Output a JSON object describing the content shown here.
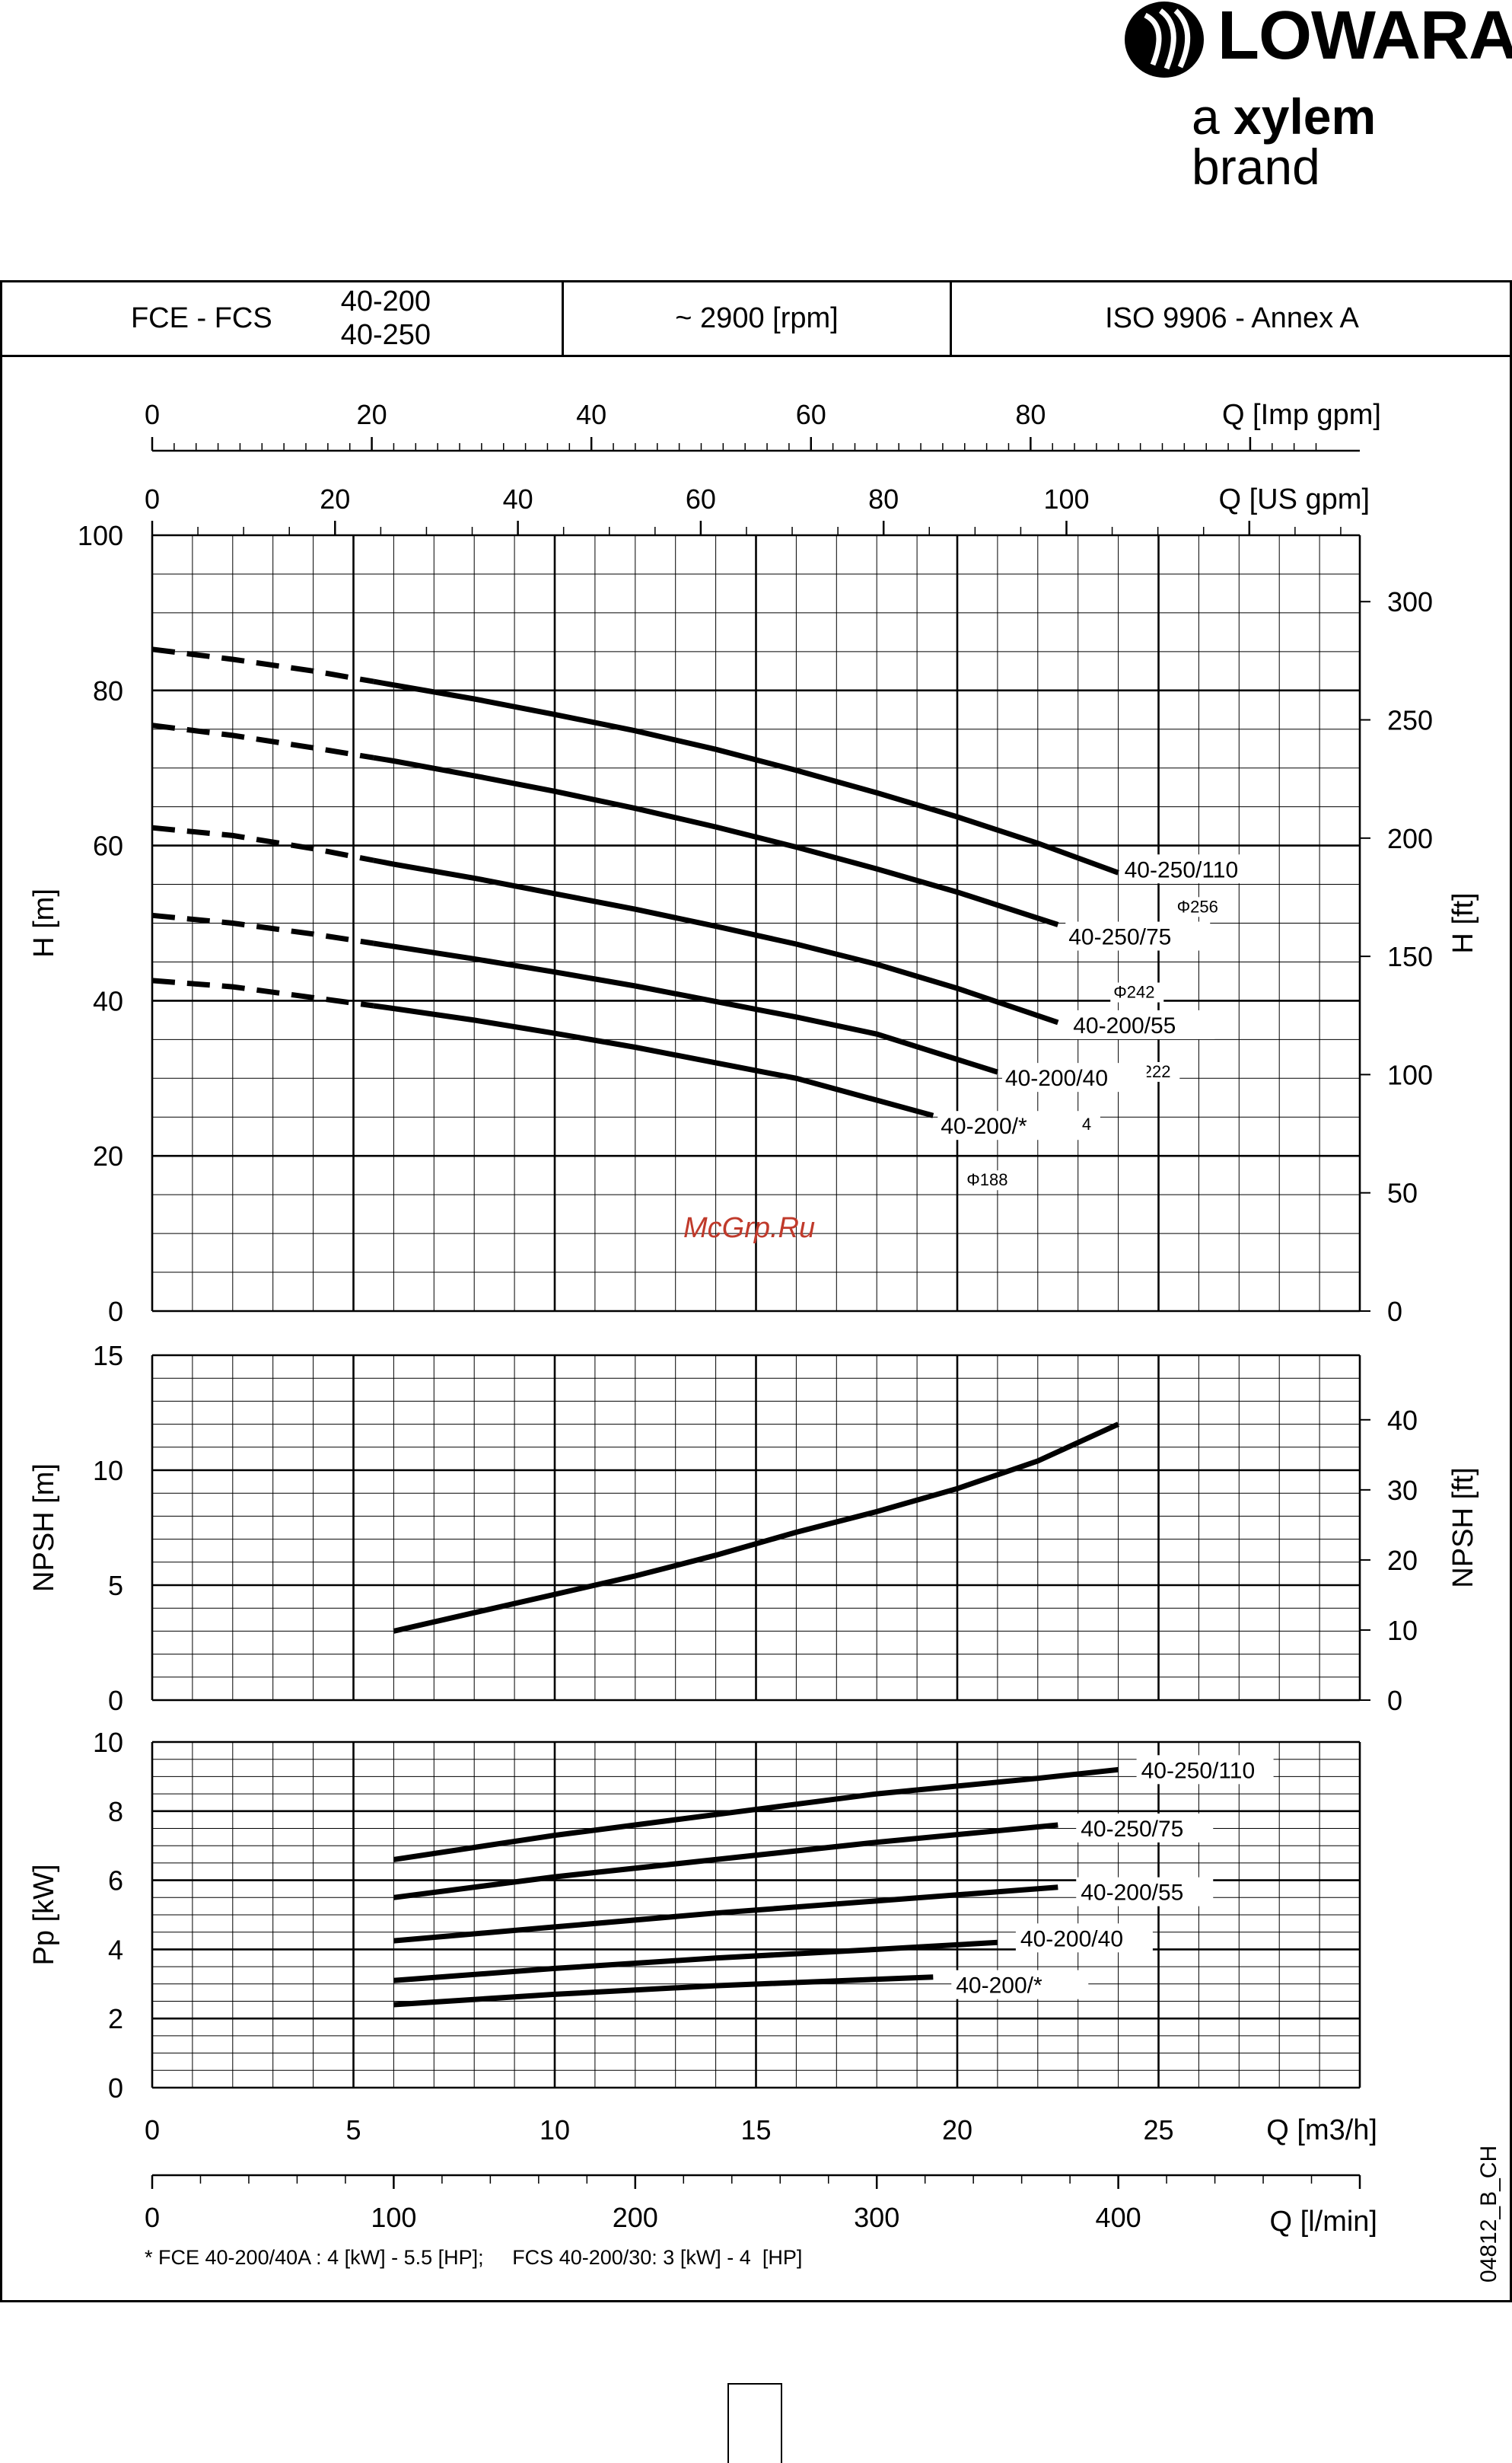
{
  "brand": {
    "name": "LOWARA",
    "tagline_pre": "a ",
    "tagline_bold": "xylem",
    "tagline_post": " brand"
  },
  "header": {
    "model": "FCE - FCS",
    "sizes": [
      "40-200",
      "40-250"
    ],
    "speed": "~ 2900 [rpm]",
    "standard": "ISO 9906 - Annex A"
  },
  "footnote": "* FCE 40-200/40A : 4 [kW] - 5.5 [HP];     FCS 40-200/30: 3 [kW] - 4  [HP]",
  "code": "04812_B_CH",
  "watermark": "McGrp.Ru",
  "chart_data": [
    {
      "type": "line",
      "id": "head",
      "xlabel": "Q [m3/h]",
      "ylabel": "H [m]",
      "ylabel_right": "H [ft]",
      "xlim": [
        0,
        30
      ],
      "ylim": [
        0,
        100
      ],
      "xticks": [
        0,
        5,
        10,
        15,
        20,
        25
      ],
      "yticks": [
        0,
        20,
        40,
        60,
        80,
        100
      ],
      "yticks_right": [
        0,
        50,
        100,
        150,
        200,
        250,
        300
      ],
      "top_axes": [
        {
          "label": "Q [US gpm]",
          "ticks": [
            0,
            20,
            40,
            60,
            80,
            100
          ]
        },
        {
          "label": "Q [Imp gpm]",
          "ticks": [
            0,
            20,
            40,
            60,
            80
          ]
        }
      ],
      "grid": true,
      "series": [
        {
          "name": "40-250/110",
          "diameter": "Φ256",
          "dashed_to": 5.5,
          "x": [
            0,
            2,
            4,
            6,
            8,
            10,
            12,
            14,
            16,
            18,
            20,
            22,
            24
          ],
          "y": [
            85.3,
            84.0,
            82.5,
            80.7,
            78.9,
            76.9,
            74.8,
            72.4,
            69.7,
            66.8,
            63.7,
            60.3,
            56.5
          ]
        },
        {
          "name": "40-250/75",
          "diameter": "Φ242",
          "dashed_to": 5.5,
          "x": [
            0,
            2,
            4,
            6,
            8,
            10,
            12,
            14,
            16,
            18,
            20,
            22.5
          ],
          "y": [
            75.5,
            74.2,
            72.6,
            70.9,
            69.0,
            67.0,
            64.8,
            62.4,
            59.8,
            57.0,
            54.0,
            49.8
          ]
        },
        {
          "name": "40-200/55",
          "diameter": "Φ222",
          "dashed_to": 5.5,
          "x": [
            0,
            2,
            4,
            6,
            8,
            10,
            12,
            14,
            16,
            18,
            20,
            22.5
          ],
          "y": [
            62.3,
            61.3,
            59.6,
            57.6,
            55.8,
            53.8,
            51.8,
            49.6,
            47.3,
            44.7,
            41.6,
            37.2
          ]
        },
        {
          "name": "40-200/40",
          "diameter": "Φ204",
          "dashed_to": 5.5,
          "x": [
            0,
            2,
            4,
            6,
            8,
            10,
            12,
            14,
            16,
            18,
            21
          ],
          "y": [
            51.0,
            50.0,
            48.6,
            47.0,
            45.4,
            43.7,
            41.9,
            39.9,
            37.9,
            35.7,
            30.8
          ]
        },
        {
          "name": "40-200/*",
          "diameter": "Φ188",
          "dashed_to": 5.5,
          "x": [
            0,
            2,
            4,
            6,
            8,
            10,
            12,
            14,
            16,
            19.4
          ],
          "y": [
            42.6,
            41.8,
            40.4,
            39.0,
            37.5,
            35.8,
            34.0,
            32.0,
            30.0,
            25.2
          ]
        }
      ]
    },
    {
      "type": "line",
      "id": "npsh",
      "xlabel": "Q [m3/h]",
      "ylabel": "NPSH [m]",
      "ylabel_right": "NPSH [ft]",
      "xlim": [
        0,
        30
      ],
      "ylim": [
        0,
        15
      ],
      "yticks": [
        0,
        5,
        10,
        15
      ],
      "yticks_right": [
        0,
        10,
        20,
        30,
        40
      ],
      "grid": true,
      "series": [
        {
          "name": "",
          "x": [
            6,
            8,
            10,
            12,
            14,
            16,
            18,
            20,
            22,
            24
          ],
          "y": [
            3.0,
            3.8,
            4.6,
            5.4,
            6.3,
            7.3,
            8.2,
            9.2,
            10.4,
            12.0
          ]
        }
      ]
    },
    {
      "type": "line",
      "id": "power",
      "xlabel": "Q [m3/h]",
      "xlabel_bottom": "Q [l/min]",
      "ylabel": "Pp [kW]",
      "xlim": [
        0,
        30
      ],
      "ylim": [
        0,
        10
      ],
      "xticks": [
        0,
        5,
        10,
        15,
        20,
        25
      ],
      "yticks": [
        0,
        2,
        4,
        6,
        8,
        10
      ],
      "bottom_axis_ticks": [
        0,
        100,
        200,
        300,
        400
      ],
      "grid": true,
      "series": [
        {
          "name": "40-250/110",
          "x": [
            6,
            10,
            14,
            18,
            22,
            24
          ],
          "y": [
            6.6,
            7.3,
            7.9,
            8.5,
            8.95,
            9.2
          ]
        },
        {
          "name": "40-250/75",
          "x": [
            6,
            10,
            14,
            18,
            22.5
          ],
          "y": [
            5.5,
            6.1,
            6.6,
            7.1,
            7.6
          ]
        },
        {
          "name": "40-200/55",
          "x": [
            6,
            10,
            14,
            18,
            22.5
          ],
          "y": [
            4.25,
            4.65,
            5.05,
            5.4,
            5.8
          ]
        },
        {
          "name": "40-200/40",
          "x": [
            6,
            10,
            14,
            18,
            21
          ],
          "y": [
            3.1,
            3.45,
            3.75,
            4.0,
            4.2
          ]
        },
        {
          "name": "40-200/*",
          "x": [
            6,
            10,
            14,
            19.4
          ],
          "y": [
            2.4,
            2.7,
            2.95,
            3.2
          ]
        }
      ]
    }
  ]
}
